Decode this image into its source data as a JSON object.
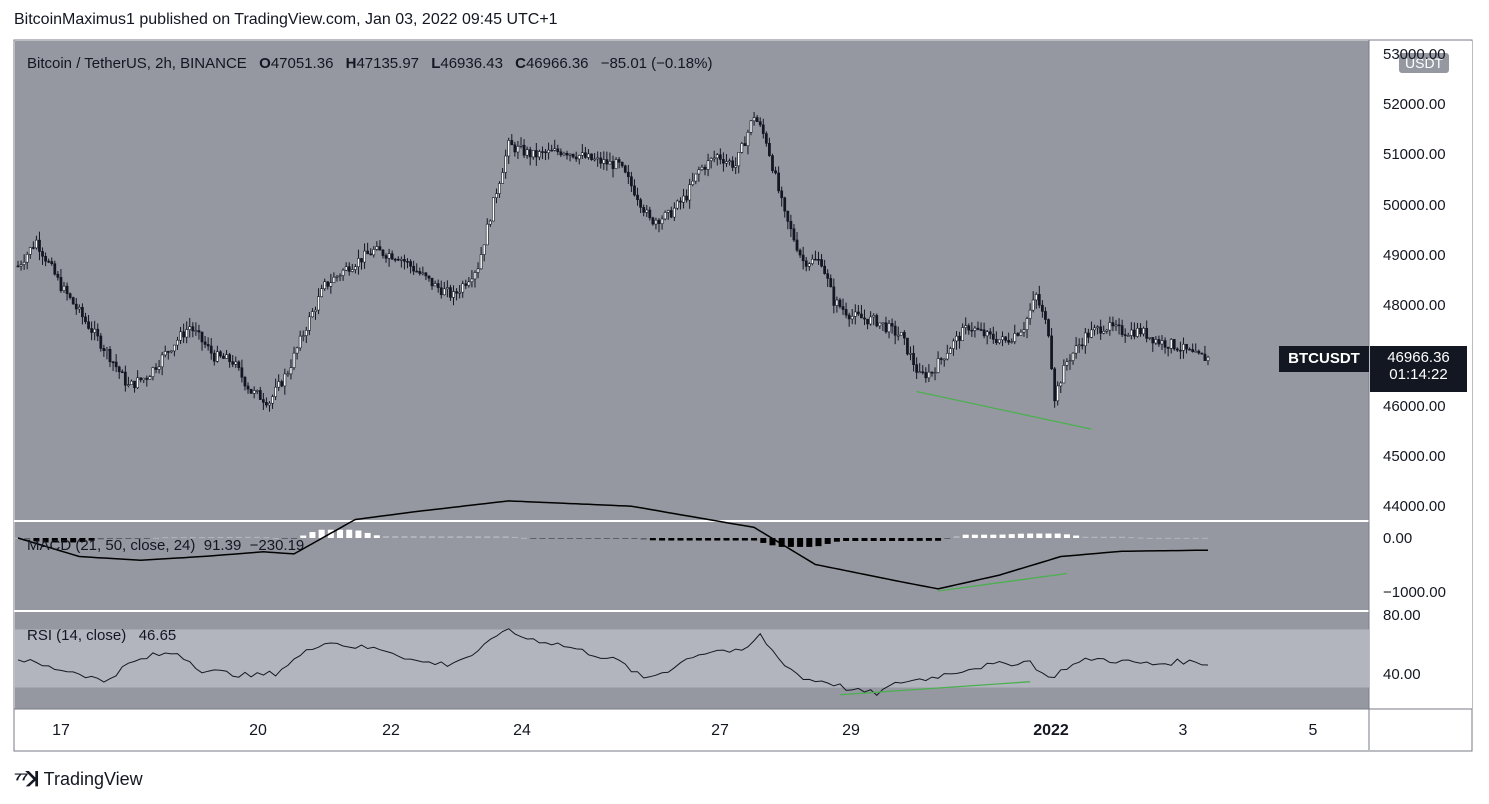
{
  "header": {
    "published": "BitcoinMaximus1 published on TradingView.com, Jan 03, 2022 09:45 UTC+1"
  },
  "symbol": {
    "title": "Bitcoin / TetherUS, 2h, BINANCE",
    "o_label": "O",
    "o": "47051.36",
    "h_label": "H",
    "h": "47135.97",
    "l_label": "L",
    "l": "46936.43",
    "c_label": "C",
    "c": "46966.36",
    "change": "−85.01 (−0.18%)",
    "currency_button": "USDT"
  },
  "last_price": {
    "ticker": "BTCUSDT",
    "price": "46966.36",
    "countdown": "01:14:22"
  },
  "indicators": {
    "macd_label": "MACD (21, 50, close, 24)",
    "macd_value1": "91.39",
    "macd_value2": "−230.19",
    "rsi_label": "RSI (14, close)",
    "rsi_value": "46.65"
  },
  "axes": {
    "price_ticks": [
      "53000.00",
      "52000.00",
      "51000.00",
      "50000.00",
      "49000.00",
      "48000.00",
      "47000.00",
      "46000.00",
      "45000.00",
      "44000.00"
    ],
    "macd_ticks": [
      "0.00",
      "−1000.00"
    ],
    "rsi_ticks": [
      "80.00",
      "40.00"
    ],
    "date_ticks": [
      {
        "label": "17",
        "bold": false
      },
      {
        "label": "20",
        "bold": false
      },
      {
        "label": "22",
        "bold": false
      },
      {
        "label": "24",
        "bold": false
      },
      {
        "label": "27",
        "bold": false
      },
      {
        "label": "29",
        "bold": false
      },
      {
        "label": "2022",
        "bold": true
      },
      {
        "label": "3",
        "bold": false
      },
      {
        "label": "5",
        "bold": false
      }
    ]
  },
  "footer": {
    "brand": "TradingView",
    "logo": "tradingview-logo-icon"
  },
  "colors": {
    "pane_bg": "#9598a1",
    "rsi_band": "#b2b5be",
    "candle": "#131722",
    "up_fill": "#ffffff",
    "divergence": "#4caf50"
  },
  "chart_data": {
    "type": "candlestick",
    "title": "Bitcoin / TetherUS, 2h, BINANCE",
    "price_range": [
      43800,
      53000
    ],
    "price_path": [
      [
        0,
        48800
      ],
      [
        6,
        49300
      ],
      [
        14,
        48400
      ],
      [
        22,
        47700
      ],
      [
        30,
        47000
      ],
      [
        36,
        46400
      ],
      [
        42,
        46600
      ],
      [
        50,
        47200
      ],
      [
        56,
        47600
      ],
      [
        64,
        47000
      ],
      [
        70,
        46900
      ],
      [
        76,
        46300
      ],
      [
        82,
        46100
      ],
      [
        88,
        46700
      ],
      [
        94,
        47600
      ],
      [
        100,
        48400
      ],
      [
        108,
        48800
      ],
      [
        116,
        49100
      ],
      [
        124,
        49000
      ],
      [
        130,
        48700
      ],
      [
        136,
        48400
      ],
      [
        142,
        48200
      ],
      [
        150,
        48800
      ],
      [
        156,
        50300
      ],
      [
        160,
        51200
      ],
      [
        168,
        51000
      ],
      [
        178,
        51100
      ],
      [
        188,
        50900
      ],
      [
        196,
        50800
      ],
      [
        202,
        50200
      ],
      [
        206,
        49700
      ],
      [
        212,
        49800
      ],
      [
        218,
        50200
      ],
      [
        222,
        50700
      ],
      [
        228,
        51000
      ],
      [
        234,
        50800
      ],
      [
        240,
        51800
      ],
      [
        244,
        51300
      ],
      [
        250,
        49800
      ],
      [
        256,
        48900
      ],
      [
        262,
        48900
      ],
      [
        266,
        48100
      ],
      [
        272,
        47800
      ],
      [
        280,
        47700
      ],
      [
        288,
        47400
      ],
      [
        294,
        46600
      ],
      [
        298,
        46700
      ],
      [
        304,
        47200
      ],
      [
        310,
        47600
      ],
      [
        316,
        47400
      ],
      [
        322,
        47300
      ],
      [
        328,
        47600
      ],
      [
        332,
        48200
      ],
      [
        336,
        47500
      ],
      [
        338,
        46200
      ],
      [
        342,
        46900
      ],
      [
        348,
        47400
      ],
      [
        354,
        47600
      ],
      [
        360,
        47500
      ],
      [
        366,
        47500
      ],
      [
        372,
        47300
      ],
      [
        378,
        47200
      ],
      [
        384,
        47000
      ],
      [
        388,
        46966
      ]
    ],
    "macd": {
      "name": "MACD (21, 50, close, 24)",
      "values_shown": [
        91.39,
        -230.19
      ],
      "range": [
        -1000,
        0
      ],
      "line": [
        [
          0,
          0
        ],
        [
          20,
          -350
        ],
        [
          40,
          -420
        ],
        [
          60,
          -350
        ],
        [
          80,
          -260
        ],
        [
          90,
          -300
        ],
        [
          110,
          350
        ],
        [
          130,
          500
        ],
        [
          160,
          700
        ],
        [
          200,
          600
        ],
        [
          240,
          200
        ],
        [
          260,
          -500
        ],
        [
          290,
          -850
        ],
        [
          300,
          -960
        ],
        [
          320,
          -700
        ],
        [
          340,
          -350
        ],
        [
          360,
          -250
        ],
        [
          388,
          -230
        ]
      ]
    },
    "rsi": {
      "name": "RSI (14, close)",
      "value_shown": 46.65,
      "range": [
        20,
        80
      ],
      "band": [
        30,
        70
      ],
      "line": [
        [
          0,
          50
        ],
        [
          10,
          44
        ],
        [
          20,
          40
        ],
        [
          28,
          34
        ],
        [
          36,
          46
        ],
        [
          44,
          52
        ],
        [
          52,
          54
        ],
        [
          60,
          42
        ],
        [
          68,
          40
        ],
        [
          76,
          38
        ],
        [
          84,
          40
        ],
        [
          92,
          52
        ],
        [
          100,
          62
        ],
        [
          110,
          58
        ],
        [
          120,
          56
        ],
        [
          130,
          48
        ],
        [
          140,
          46
        ],
        [
          150,
          54
        ],
        [
          158,
          70
        ],
        [
          166,
          64
        ],
        [
          176,
          60
        ],
        [
          186,
          54
        ],
        [
          196,
          48
        ],
        [
          204,
          36
        ],
        [
          212,
          42
        ],
        [
          220,
          52
        ],
        [
          228,
          56
        ],
        [
          236,
          54
        ],
        [
          242,
          66
        ],
        [
          248,
          50
        ],
        [
          256,
          36
        ],
        [
          264,
          34
        ],
        [
          272,
          28
        ],
        [
          280,
          26
        ],
        [
          288,
          34
        ],
        [
          296,
          36
        ],
        [
          304,
          40
        ],
        [
          312,
          44
        ],
        [
          320,
          46
        ],
        [
          330,
          48
        ],
        [
          336,
          36
        ],
        [
          342,
          44
        ],
        [
          350,
          50
        ],
        [
          360,
          48
        ],
        [
          370,
          46
        ],
        [
          380,
          48
        ],
        [
          388,
          46.65
        ]
      ]
    },
    "divergence_lines": [
      {
        "pane": "price",
        "from": [
          293,
          46300
        ],
        "to": [
          350,
          45550
        ]
      },
      {
        "pane": "macd",
        "from": [
          300,
          -1000
        ],
        "to": [
          342,
          -670
        ]
      },
      {
        "pane": "rsi",
        "from": [
          268,
          25
        ],
        "to": [
          330,
          34
        ]
      }
    ]
  }
}
